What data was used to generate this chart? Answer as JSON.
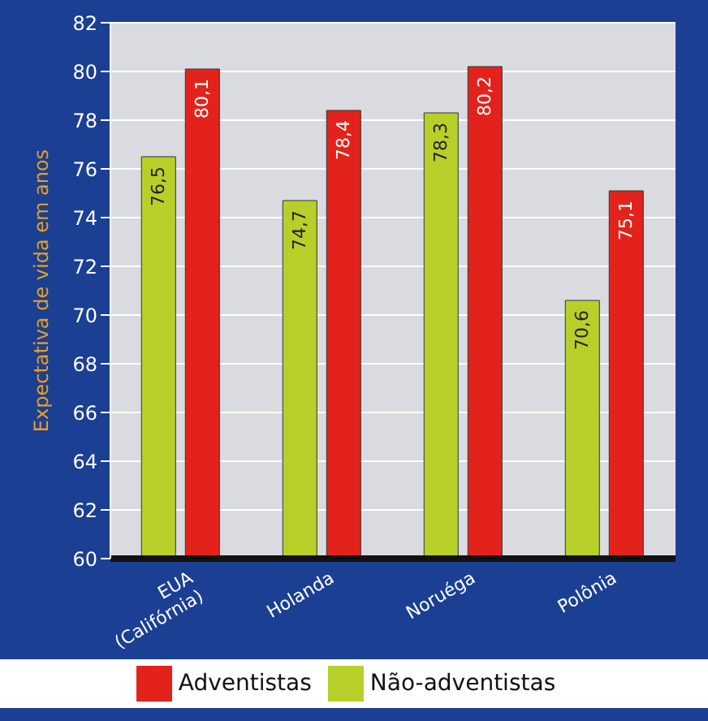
{
  "chart_data": {
    "type": "bar",
    "ylabel": "Expectativa de vida em anos",
    "categories": [
      "EUA (Califórnia)",
      "Holanda",
      "Noruéga",
      "Polônia"
    ],
    "series": [
      {
        "name": "Não-adventistas",
        "color": "#b8cf2a",
        "values": [
          76.5,
          74.7,
          78.3,
          70.6
        ],
        "value_labels": [
          "76,5",
          "74,7",
          "78,3",
          "70,6"
        ]
      },
      {
        "name": "Adventistas",
        "color": "#e3231b",
        "values": [
          80.1,
          78.4,
          80.2,
          75.1
        ],
        "value_labels": [
          "80,1",
          "78,4",
          "80,2",
          "75,1"
        ]
      }
    ],
    "ylim": [
      60,
      82
    ],
    "yticks": [
      60,
      62,
      64,
      66,
      68,
      70,
      72,
      74,
      76,
      78,
      80,
      82
    ],
    "grid": "y",
    "legend": "bottom"
  }
}
